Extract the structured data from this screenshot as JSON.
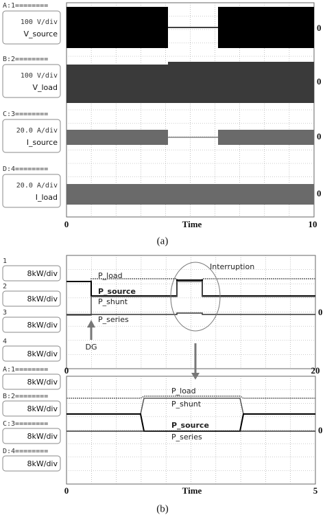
{
  "panel_a": {
    "channels": [
      {
        "id": "A:1========",
        "scale": "100 V/div",
        "name": "V_source"
      },
      {
        "id": "B:2========",
        "scale": "100 V/div",
        "name": "V_load"
      },
      {
        "id": "C:3========",
        "scale": "20.0 A/div",
        "name": "I_source"
      },
      {
        "id": "D:4========",
        "scale": "20.0 A/div",
        "name": "I_load"
      }
    ],
    "zero_label": "0",
    "x_start": "0",
    "x_label": "Time",
    "x_end": "10",
    "caption": "(a)"
  },
  "panel_b": {
    "upper": {
      "channels": [
        {
          "id": "1",
          "scale": "8kW/div"
        },
        {
          "id": "2",
          "scale": "8kW/div"
        },
        {
          "id": "3",
          "scale": "8kW/div"
        },
        {
          "id": "4",
          "scale": "8kW/div"
        }
      ],
      "traces": [
        "P_load",
        "P_source",
        "P_shunt",
        "P_series"
      ],
      "annotation": "Interruption",
      "marker": "DG",
      "zero_label": "0",
      "x_start": "0",
      "x_end": "20"
    },
    "lower": {
      "channels": [
        {
          "id": "A:1========",
          "scale": "8kW/div"
        },
        {
          "id": "B:2========",
          "scale": "8kW/div"
        },
        {
          "id": "C:3========",
          "scale": "8kW/div"
        },
        {
          "id": "D:4========",
          "scale": "8kW/div"
        }
      ],
      "traces": [
        "P_load",
        "P_shunt",
        "P_source",
        "P_series"
      ],
      "zero_label": "0",
      "x_start": "0",
      "x_label": "Time",
      "x_end": "5"
    },
    "caption": "(b)"
  }
}
